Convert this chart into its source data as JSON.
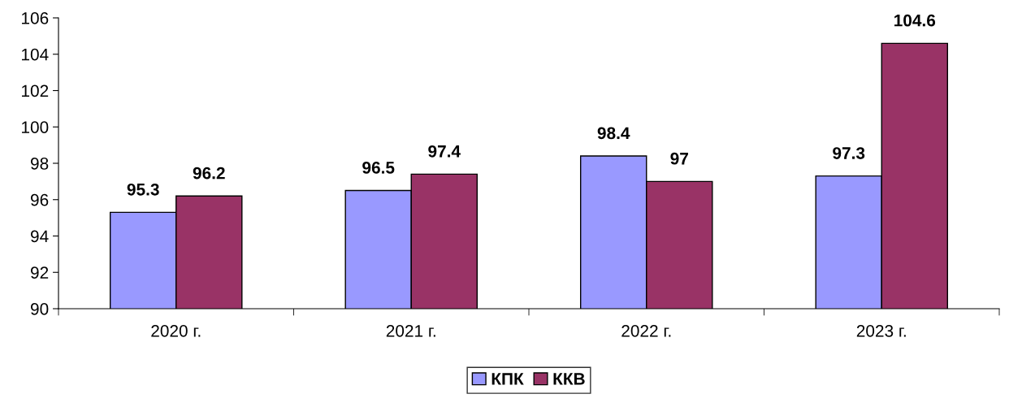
{
  "chart_data": {
    "type": "bar",
    "categories": [
      "2020 г.",
      "2021 г.",
      "2022 г.",
      "2023 г."
    ],
    "series": [
      {
        "name": "КПК",
        "color": "#9999ff",
        "values": [
          95.3,
          96.5,
          98.4,
          97.3
        ]
      },
      {
        "name": "ККВ",
        "color": "#993366",
        "values": [
          96.2,
          97.4,
          97,
          104.6
        ]
      }
    ],
    "ylim": [
      90,
      106
    ],
    "yticks": [
      90,
      92,
      94,
      96,
      98,
      100,
      102,
      104,
      106
    ],
    "grid": false,
    "legend": "bottom",
    "data_labels": true
  }
}
